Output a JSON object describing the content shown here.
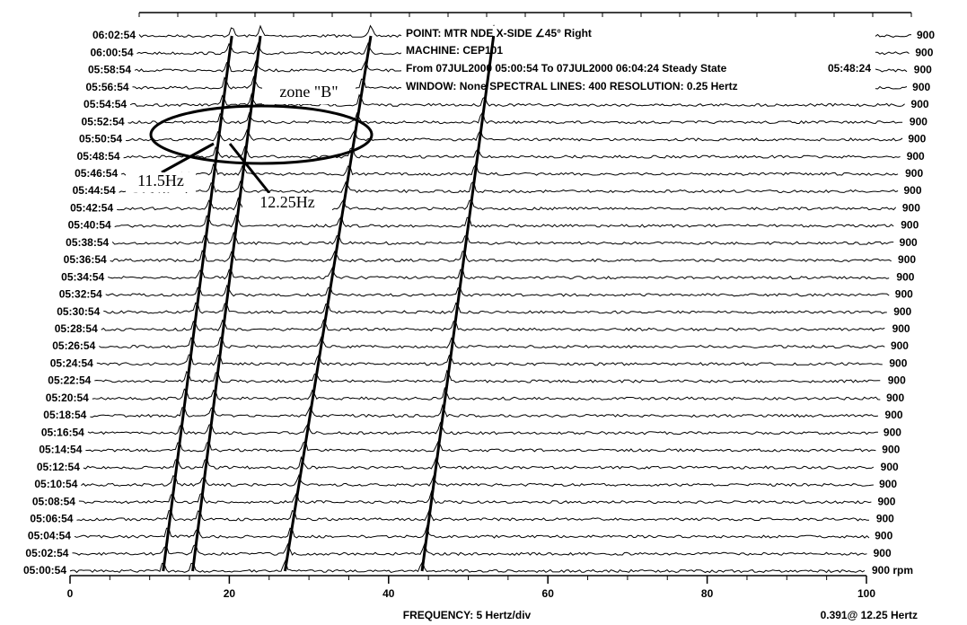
{
  "chart_data": {
    "type": "waterfall",
    "info_lines": [
      "POINT: MTR NDE X-SIDE  ∠45° Right",
      "MACHINE: CEP101",
      "From 07JUL2000 05:00:54 To 07JUL2000 06:04:24 Steady State",
      "WINDOW: None  SPECTRAL LINES: 400  RESOLUTION: 0.25 Hertz"
    ],
    "info_time": "05:48:24",
    "categories": [
      "06:02:54",
      "06:00:54",
      "05:58:54",
      "05:56:54",
      "05:54:54",
      "05:52:54",
      "05:50:54",
      "05:48:54",
      "05:46:54",
      "05:44:54",
      "05:42:54",
      "05:40:54",
      "05:38:54",
      "05:36:54",
      "05:34:54",
      "05:32:54",
      "05:30:54",
      "05:28:54",
      "05:26:54",
      "05:24:54",
      "05:22:54",
      "05:20:54",
      "05:18:54",
      "05:16:54",
      "05:14:54",
      "05:12:54",
      "05:10:54",
      "05:08:54",
      "05:06:54",
      "05:04:54",
      "05:02:54",
      "05:00:54"
    ],
    "rpm_labels": [
      "900",
      "900",
      "900",
      "900",
      "900",
      "900",
      "900",
      "900",
      "900",
      "900",
      "900",
      "900",
      "900",
      "900",
      "900",
      "900",
      "900",
      "900",
      "900",
      "900",
      "900",
      "900",
      "900",
      "900",
      "900",
      "900",
      "900",
      "900",
      "900",
      "900",
      "900",
      "900 rpm"
    ],
    "x_label": "FREQUENCY: 5 Hertz/div",
    "cursor_label": "0.391@ 12.25 Hertz",
    "xlim": [
      0,
      100
    ],
    "xticks": [
      0,
      20,
      40,
      60,
      80,
      100
    ],
    "ridges": [
      {
        "x": [
          11.7,
          12.0
        ]
      },
      {
        "x": [
          15.4,
          15.7
        ]
      },
      {
        "x": [
          27,
          30
        ]
      },
      {
        "x": [
          44.2,
          45.9
        ]
      }
    ],
    "annotations": {
      "zone": "zone \"B\"",
      "left_peak": "11.5Hz",
      "right_peak": "12.25Hz"
    }
  }
}
